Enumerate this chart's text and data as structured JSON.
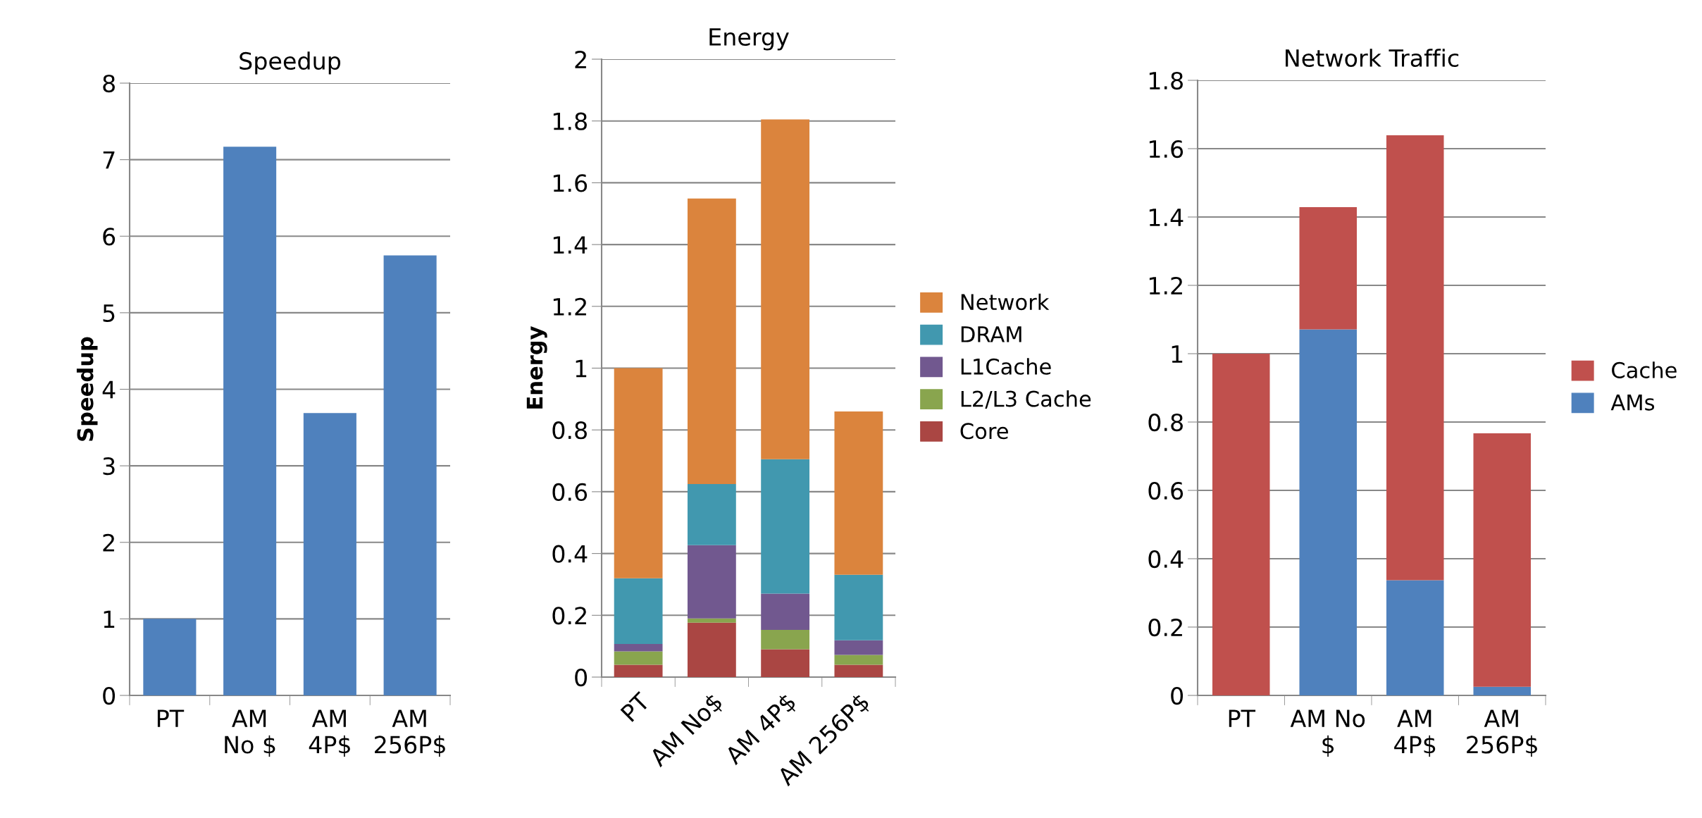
{
  "chart_data": [
    {
      "type": "bar",
      "title": "Speedup",
      "ylabel": "Speedup",
      "categories": [
        "PT",
        "AM\nNo $",
        "AM\n4P$",
        "AM\n256P$"
      ],
      "series": [
        {
          "color": "#4f81bd",
          "values": [
            1,
            7.17,
            3.69,
            5.75
          ]
        }
      ],
      "ylim": [
        0,
        8
      ],
      "yticks": [
        0,
        1,
        2,
        3,
        4,
        5,
        6,
        7,
        8
      ],
      "grid": "y",
      "legend": false
    },
    {
      "type": "bar",
      "title": "Energy",
      "ylabel": "Energy",
      "categories": [
        "PT",
        "AM No$",
        "AM 4P$",
        "AM 256P$"
      ],
      "stacked": true,
      "series": [
        {
          "name": "Core",
          "color": "#aa4643",
          "values": [
            0.04,
            0.176,
            0.09,
            0.04
          ]
        },
        {
          "name": "L2/L3 Cache",
          "color": "#89a54e",
          "values": [
            0.043,
            0.014,
            0.063,
            0.032
          ]
        },
        {
          "name": "L1Cache",
          "color": "#71588f",
          "values": [
            0.024,
            0.237,
            0.117,
            0.047
          ]
        },
        {
          "name": "DRAM",
          "color": "#4198af",
          "values": [
            0.213,
            0.198,
            0.435,
            0.212
          ]
        },
        {
          "name": "Network",
          "color": "#db843d",
          "values": [
            0.68,
            0.924,
            1.1,
            0.529
          ]
        }
      ],
      "ylim": [
        0,
        2
      ],
      "yticks": [
        0,
        0.2,
        0.4,
        0.6,
        0.8,
        1,
        1.2,
        1.4,
        1.6,
        1.8,
        2
      ],
      "grid": "y",
      "legend": "right"
    },
    {
      "type": "bar",
      "title": "Network Traffic",
      "categories": [
        "PT",
        "AM No\n$",
        "AM\n4P$",
        "AM\n256P$"
      ],
      "stacked": true,
      "series": [
        {
          "name": "AMs",
          "color": "#4f81bd",
          "values": [
            0,
            1.071,
            0.337,
            0.025
          ]
        },
        {
          "name": "Cache",
          "color": "#c0504d",
          "values": [
            1.0,
            0.358,
            1.302,
            0.742
          ]
        }
      ],
      "ylim": [
        0,
        1.8
      ],
      "yticks": [
        0,
        0.2,
        0.4,
        0.6,
        0.8,
        1,
        1.2,
        1.4,
        1.6,
        1.8
      ],
      "grid": "y",
      "legend": "right"
    }
  ]
}
